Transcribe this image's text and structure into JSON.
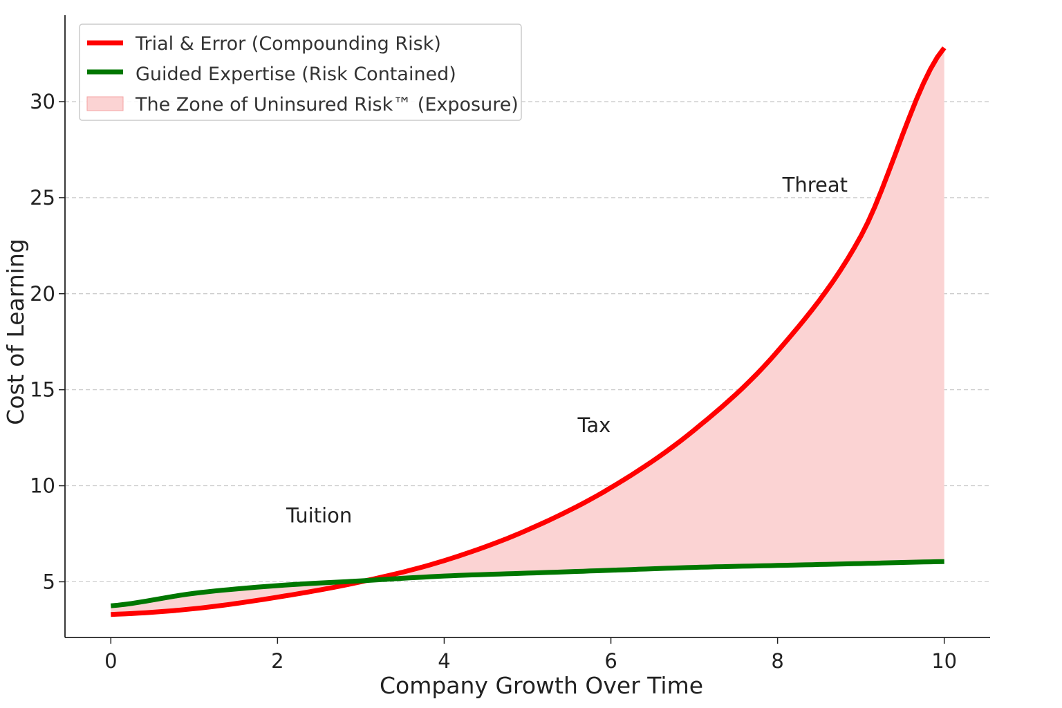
{
  "chart_data": {
    "type": "line",
    "title": "",
    "xlabel": "Company Growth Over Time",
    "ylabel": "Cost of Learning",
    "xlim": [
      -0.55,
      10.55
    ],
    "ylim": [
      2.1,
      34.5
    ],
    "xticks": [
      0,
      2,
      4,
      6,
      8,
      10
    ],
    "yticks": [
      5,
      10,
      15,
      20,
      25,
      30
    ],
    "grid": "horizontal dashed",
    "legend_position": "top-left",
    "x": [
      0,
      1,
      2,
      3,
      4,
      5,
      6,
      7,
      8,
      9,
      10
    ],
    "series": [
      {
        "name": "Trial & Error (Compounding Risk)",
        "color": "#ff0000",
        "values": [
          3.3,
          3.6,
          4.2,
          5.0,
          6.1,
          7.7,
          9.9,
          12.9,
          17.0,
          23.0,
          32.8
        ]
      },
      {
        "name": "Guided Expertise (Risk Contained)",
        "color": "#007700",
        "values": [
          3.75,
          4.4,
          4.8,
          5.05,
          5.3,
          5.45,
          5.6,
          5.75,
          5.85,
          5.95,
          6.05
        ]
      }
    ],
    "fill_between": {
      "name": "The Zone of Uninsured Risk™ (Exposure)",
      "color": "#fbd3d3"
    },
    "annotations": [
      {
        "text": "Tuition",
        "x": 2.5,
        "y": 8.1
      },
      {
        "text": "Tax",
        "x": 5.8,
        "y": 12.8
      },
      {
        "text": "Threat",
        "x": 8.45,
        "y": 25.3
      }
    ]
  }
}
